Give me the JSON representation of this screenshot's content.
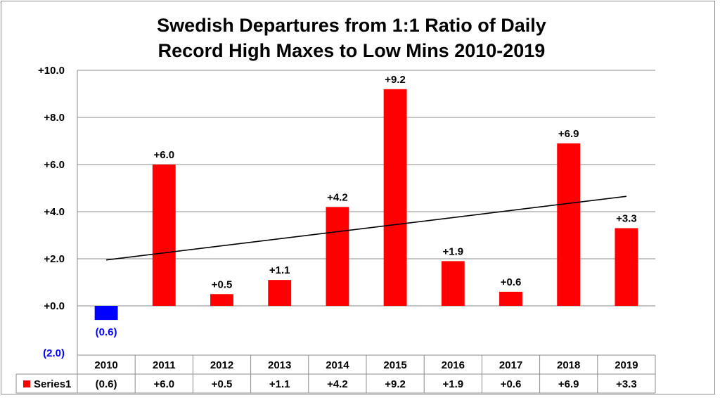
{
  "chart_data": {
    "type": "bar",
    "title_lines": [
      "Swedish Departures from 1:1 Ratio of Daily",
      "Record High Maxes to Low Mins 2010-2019"
    ],
    "categories": [
      "2010",
      "2011",
      "2012",
      "2013",
      "2014",
      "2015",
      "2016",
      "2017",
      "2018",
      "2019"
    ],
    "series": [
      {
        "name": "Series1",
        "values": [
          -0.6,
          6.0,
          0.5,
          1.1,
          4.2,
          9.2,
          1.9,
          0.6,
          6.9,
          3.3
        ],
        "data_labels": [
          "(0.6)",
          "+6.0",
          "+0.5",
          "+1.1",
          "+4.2",
          "+9.2",
          "+1.9",
          "+0.6",
          "+6.9",
          "+3.3"
        ],
        "color_positive": "#ff0000",
        "color_negative": "#0000ff"
      }
    ],
    "ylim": [
      -2.0,
      10.0
    ],
    "y_ticks": [
      10.0,
      8.0,
      6.0,
      4.0,
      2.0,
      0.0,
      -2.0
    ],
    "y_tick_labels": [
      "+10.0",
      "+8.0",
      "+6.0",
      "+4.0",
      "+2.0",
      "+0.0",
      "(2.0)"
    ],
    "trendline": {
      "type": "linear",
      "start": 1.95,
      "end": 4.65,
      "color": "#000000"
    },
    "grid": true,
    "data_table": true,
    "legend": "data-table-left"
  }
}
